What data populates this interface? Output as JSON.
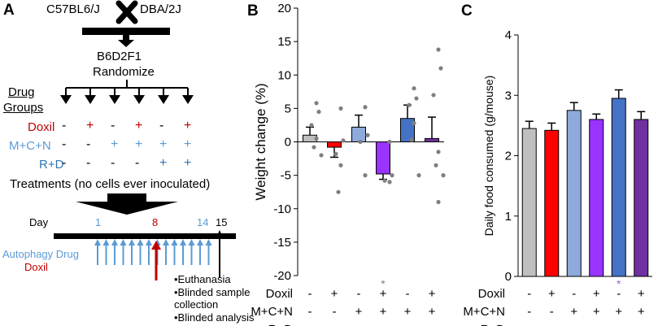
{
  "panel_a": {
    "letter": "A",
    "strain_left": "C57BL6/J",
    "strain_right": "DBA/2J",
    "hybrid": "B6D2F1",
    "randomize": "Randomize",
    "groups_title_1": "Drug",
    "groups_title_2": "Groups",
    "rows": [
      {
        "label": "Doxil",
        "color": "#c00000",
        "signs": [
          "-",
          "+",
          "-",
          "+",
          "-",
          "+"
        ]
      },
      {
        "label": "M+C+N",
        "color": "#5b9bd5",
        "signs": [
          "-",
          "-",
          "+",
          "+",
          "+",
          "+"
        ]
      },
      {
        "label": "R+D",
        "color": "#2e75b6",
        "signs": [
          "-",
          "-",
          "-",
          "-",
          "+",
          "+"
        ]
      }
    ],
    "treatments": "Treatments (no cells ever inoculated)",
    "day_label": "Day",
    "day_1": "1",
    "day_8": "8",
    "day_14": "14",
    "day_15": "15",
    "autophagy_label": "Autophagy Drug",
    "doxil_label": "Doxil",
    "bullets": [
      "•Euthanasia",
      "•Blinded sample",
      "collection",
      "•Blinded analysis"
    ],
    "colors": {
      "doxil": "#c00000",
      "autophagy": "#5b9bd5",
      "rd": "#2e75b6"
    }
  },
  "chart_data": [
    {
      "panel": "B",
      "type": "bar",
      "title": "",
      "xlabel": "",
      "ylabel": "Weight change (%)",
      "ylim": [
        -20,
        20
      ],
      "yticks": [
        "20",
        "15",
        "10",
        "5",
        "0",
        "-5",
        "-10",
        "-15",
        "-20"
      ],
      "categories": [
        "Doxil- M+C+N- R+D-",
        "Doxil+ M+C+N- R+D-",
        "Doxil- M+C+N+ R+D-",
        "Doxil+ M+C+N+ R+D-",
        "Doxil- M+C+N+ R+D+",
        "Doxil+ M+C+N+ R+D+"
      ],
      "values": [
        1.0,
        -0.8,
        2.2,
        -4.8,
        3.5,
        0.5
      ],
      "errors": [
        1.2,
        1.5,
        1.8,
        0.8,
        2.0,
        3.2
      ],
      "colors": [
        "#bfbfbf",
        "#ff0000",
        "#8eaadb",
        "#9933ff",
        "#4472c4",
        "#7030a0"
      ],
      "points": [
        [
          5.8,
          4.5,
          2.5,
          0.5,
          -0.8,
          -2.0
        ],
        [
          5.0,
          0.2,
          -1.8,
          -3.5,
          -7.5
        ],
        [
          5.2,
          1.0,
          0.0,
          -5.0
        ],
        [
          0.0,
          -5.0,
          -5.8,
          -6.0
        ],
        [
          8.0,
          6.5,
          5.5,
          2.8,
          0.3,
          -5.0
        ],
        [
          13.8,
          11.0,
          7.0,
          -1.5,
          -3.5,
          -5.0,
          -9.0
        ]
      ],
      "significance": [
        "",
        "",
        "",
        "*",
        "",
        ""
      ],
      "factor_rows": [
        {
          "label": "Doxil",
          "signs": [
            "-",
            "+",
            "-",
            "+",
            "-",
            "+"
          ]
        },
        {
          "label": "M+C+N",
          "signs": [
            "-",
            "-",
            "+",
            "+",
            "+",
            "+"
          ]
        },
        {
          "label": "R+D",
          "signs": [
            "-",
            "-",
            "-",
            "-",
            "+",
            "+"
          ]
        }
      ]
    },
    {
      "panel": "C",
      "type": "bar",
      "title": "",
      "xlabel": "",
      "ylabel": "Daily food consumed  (g/mouse)",
      "ylim": [
        0,
        4
      ],
      "yticks": [
        "4",
        "3",
        "2",
        "1",
        "0"
      ],
      "categories": [
        "Doxil- M+C+N- R+D-",
        "Doxil+ M+C+N- R+D-",
        "Doxil- M+C+N+ R+D-",
        "Doxil+ M+C+N+ R+D-",
        "Doxil- M+C+N+ R+D+",
        "Doxil+ M+C+N+ R+D+"
      ],
      "values": [
        2.45,
        2.42,
        2.75,
        2.6,
        2.95,
        2.6
      ],
      "errors": [
        0.12,
        0.12,
        0.13,
        0.09,
        0.14,
        0.13
      ],
      "colors": [
        "#bfbfbf",
        "#ff0000",
        "#8eaadb",
        "#9933ff",
        "#4472c4",
        "#7030a0"
      ],
      "significance": [
        "",
        "",
        "",
        "",
        "*",
        ""
      ],
      "factor_rows": [
        {
          "label": "Doxil",
          "signs": [
            "-",
            "+",
            "-",
            "+",
            "-",
            "+"
          ]
        },
        {
          "label": "M+C+N",
          "signs": [
            "-",
            "-",
            "+",
            "+",
            "+",
            "+"
          ]
        },
        {
          "label": "R+D",
          "signs": [
            "-",
            "-",
            "-",
            "-",
            "+",
            "+"
          ]
        }
      ]
    }
  ]
}
